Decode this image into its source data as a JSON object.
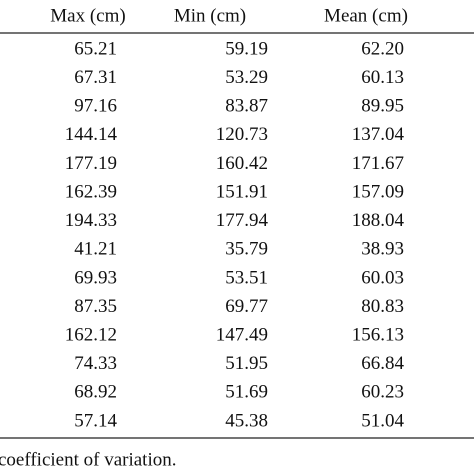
{
  "table": {
    "header": [
      "Max (cm)",
      "Min (cm)",
      "Mean (cm)"
    ],
    "rows": [
      [
        "65.21",
        "59.19",
        "62.20"
      ],
      [
        "67.31",
        "53.29",
        "60.13"
      ],
      [
        "97.16",
        "83.87",
        "89.95"
      ],
      [
        "144.14",
        "120.73",
        "137.04"
      ],
      [
        "177.19",
        "160.42",
        "171.67"
      ],
      [
        "162.39",
        "151.91",
        "157.09"
      ],
      [
        "194.33",
        "177.94",
        "188.04"
      ],
      [
        "41.21",
        "35.79",
        "38.93"
      ],
      [
        "69.93",
        "53.51",
        "60.03"
      ],
      [
        "87.35",
        "69.77",
        "80.83"
      ],
      [
        "162.12",
        "147.49",
        "156.13"
      ],
      [
        "74.33",
        "51.95",
        "66.84"
      ],
      [
        "68.92",
        "51.69",
        "60.23"
      ],
      [
        "57.14",
        "45.38",
        "51.04"
      ]
    ]
  },
  "footnote": "coefficient of variation."
}
